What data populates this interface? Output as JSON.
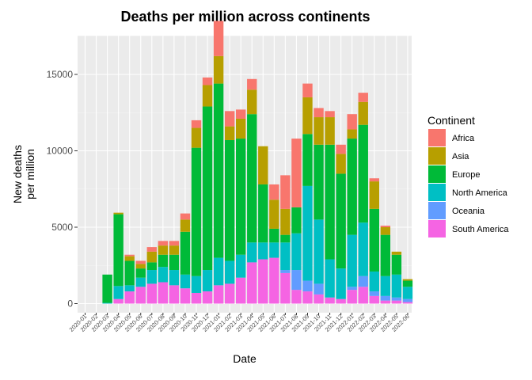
{
  "chart_data": {
    "type": "bar",
    "stacked": true,
    "title": "Deaths per million across continents",
    "xlabel": "Date",
    "ylabel_lines": [
      "New deaths",
      "per million"
    ],
    "ylim": [
      0,
      17500
    ],
    "yticks": [
      0,
      5000,
      10000,
      15000
    ],
    "ytick_labels": [
      "0",
      "5000",
      "10000",
      "15000"
    ],
    "grid": true,
    "legend": {
      "title": "Continent",
      "position": "right"
    },
    "categories": [
      "2020-01",
      "2020-02",
      "2020-03",
      "2020-04",
      "2020-05",
      "2020-06",
      "2020-07",
      "2020-08",
      "2020-09",
      "2020-10",
      "2020-11",
      "2020-12",
      "2021-01",
      "2021-02",
      "2021-03",
      "2021-04",
      "2021-05",
      "2021-06",
      "2021-07",
      "2021-08",
      "2021-09",
      "2021-10",
      "2021-11",
      "2021-12",
      "2022-01",
      "2022-02",
      "2022-03",
      "2022-04",
      "2022-05",
      "2022-06"
    ],
    "series": [
      {
        "name": "South America",
        "color": "#F564E3",
        "values": [
          0,
          0,
          0,
          300,
          800,
          1100,
          1300,
          1400,
          1200,
          1000,
          700,
          800,
          1200,
          1300,
          1700,
          2700,
          2900,
          3000,
          2000,
          900,
          800,
          600,
          400,
          300,
          900,
          1100,
          500,
          200,
          200,
          100
        ]
      },
      {
        "name": "Oceania",
        "color": "#619CFF",
        "values": [
          0,
          0,
          0,
          0,
          0,
          0,
          0,
          0,
          0,
          0,
          0,
          0,
          0,
          0,
          0,
          0,
          0,
          0,
          200,
          1300,
          700,
          700,
          0,
          0,
          200,
          700,
          300,
          300,
          200,
          200
        ]
      },
      {
        "name": "North America",
        "color": "#00BFC4",
        "values": [
          0,
          0,
          50,
          850,
          400,
          600,
          900,
          1000,
          1000,
          900,
          1100,
          1400,
          1800,
          1500,
          1500,
          1300,
          1100,
          1000,
          1800,
          2400,
          6200,
          4200,
          2500,
          2000,
          3400,
          3500,
          1300,
          1300,
          1500,
          800
        ]
      },
      {
        "name": "Europe",
        "color": "#00BA38",
        "values": [
          0,
          0,
          1850,
          4700,
          1600,
          600,
          500,
          800,
          1000,
          2800,
          8400,
          10700,
          11400,
          7900,
          7600,
          8400,
          3800,
          900,
          500,
          1700,
          3400,
          4900,
          7500,
          6200,
          6300,
          6400,
          4100,
          2700,
          1300,
          400
        ]
      },
      {
        "name": "Asia",
        "color": "#B79F00",
        "values": [
          0,
          0,
          0,
          100,
          300,
          300,
          700,
          600,
          600,
          800,
          1300,
          1400,
          1800,
          900,
          1300,
          1600,
          2500,
          1900,
          1700,
          0,
          2400,
          1800,
          1800,
          1300,
          600,
          1500,
          1800,
          500,
          200,
          100
        ]
      },
      {
        "name": "Africa",
        "color": "#F8766D",
        "values": [
          0,
          0,
          0,
          0,
          100,
          200,
          300,
          300,
          300,
          400,
          500,
          500,
          2300,
          1000,
          600,
          700,
          0,
          1000,
          2200,
          4500,
          900,
          600,
          400,
          600,
          1000,
          600,
          200,
          100,
          0,
          0
        ]
      }
    ],
    "legend_order": [
      "Africa",
      "Asia",
      "Europe",
      "North America",
      "Oceania",
      "South America"
    ]
  }
}
